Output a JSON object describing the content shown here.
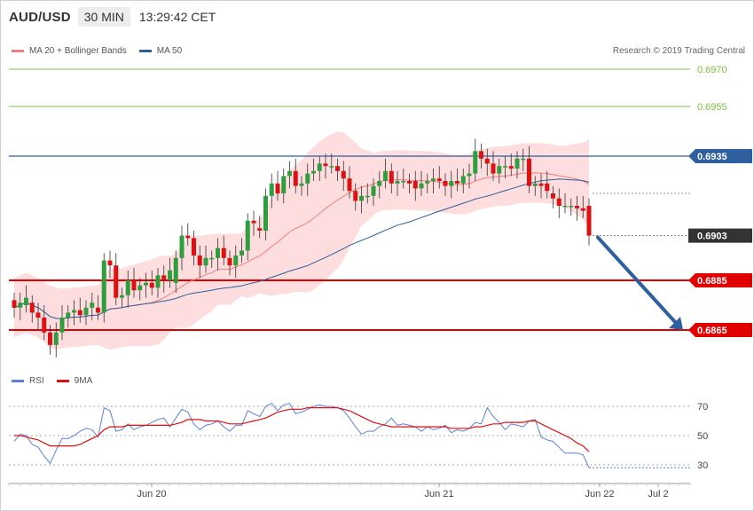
{
  "header": {
    "symbol": "AUD/USD",
    "timeframe": "30 MIN",
    "time": "13:29:42 CET"
  },
  "legend": {
    "ma20_label": "MA 20 + Bollinger Bands",
    "ma50_label": "MA 50",
    "ma20_color": "#f08080",
    "ma50_color": "#2e5f9e"
  },
  "credit": "Research © 2019 Trading Central",
  "rsi_legend": {
    "rsi_label": "RSI",
    "ma9_label": "9MA",
    "rsi_color": "#5b7fdc",
    "ma9_color": "#dd1111"
  },
  "colors": {
    "up": "#2e9e3e",
    "down": "#dd1111",
    "green_level": "#7cc244",
    "red_level": "#e00000",
    "blue_level": "#2e5f9e",
    "band_fill": "#fdd9d9",
    "arrow": "#2e5f9e",
    "current_price_bg": "#333333"
  },
  "chart_data": [
    {
      "type": "candlestick",
      "title": "AUD/USD 30 MIN",
      "ylim": [
        0.6848,
        0.6985
      ],
      "x_ticks": [
        "Jun 20",
        "Jun 21",
        "Jun 22",
        "Jul 2"
      ],
      "current_price": "0.6903",
      "arrow": {
        "direction": "down",
        "from": 0.6903,
        "to": 0.6865
      },
      "levels": [
        {
          "value": "0.6970",
          "kind": "resistance",
          "color": "green"
        },
        {
          "value": "0.6955",
          "kind": "resistance",
          "color": "green"
        },
        {
          "value": "0.6935",
          "kind": "pivot",
          "color": "blue"
        },
        {
          "value": "0.6885",
          "kind": "support",
          "color": "red"
        },
        {
          "value": "0.6865",
          "kind": "support",
          "color": "red"
        }
      ],
      "candles": [
        [
          0.6877,
          0.6874
        ],
        [
          0.6874,
          0.6876
        ],
        [
          0.6875,
          0.6878
        ],
        [
          0.6876,
          0.6872
        ],
        [
          0.6872,
          0.687
        ],
        [
          0.687,
          0.6864
        ],
        [
          0.6864,
          0.6859
        ],
        [
          0.6859,
          0.6864
        ],
        [
          0.6864,
          0.687
        ],
        [
          0.687,
          0.6872
        ],
        [
          0.6872,
          0.6873
        ],
        [
          0.6873,
          0.6871
        ],
        [
          0.6871,
          0.6874
        ],
        [
          0.6874,
          0.6876
        ],
        [
          0.6874,
          0.6872
        ],
        [
          0.6872,
          0.6893
        ],
        [
          0.6893,
          0.6891
        ],
        [
          0.6891,
          0.6878
        ],
        [
          0.6878,
          0.6879
        ],
        [
          0.6879,
          0.6885
        ],
        [
          0.6885,
          0.6881
        ],
        [
          0.6881,
          0.6883
        ],
        [
          0.6883,
          0.6884
        ],
        [
          0.6884,
          0.6882
        ],
        [
          0.6882,
          0.6887
        ],
        [
          0.6887,
          0.6885
        ],
        [
          0.6885,
          0.6889
        ],
        [
          0.6884,
          0.6894
        ],
        [
          0.6894,
          0.6903
        ],
        [
          0.6903,
          0.6902
        ],
        [
          0.6902,
          0.6895
        ],
        [
          0.6895,
          0.6891
        ],
        [
          0.6891,
          0.6894
        ],
        [
          0.6894,
          0.6894
        ],
        [
          0.6894,
          0.6898
        ],
        [
          0.6898,
          0.6894
        ],
        [
          0.6894,
          0.6891
        ],
        [
          0.6891,
          0.6895
        ],
        [
          0.6895,
          0.6897
        ],
        [
          0.6897,
          0.6909
        ],
        [
          0.6909,
          0.6908
        ],
        [
          0.6906,
          0.6905
        ],
        [
          0.6905,
          0.6919
        ],
        [
          0.6919,
          0.6924
        ],
        [
          0.6924,
          0.692
        ],
        [
          0.692,
          0.6927
        ],
        [
          0.6927,
          0.6929
        ],
        [
          0.6929,
          0.6923
        ],
        [
          0.6923,
          0.6924
        ],
        [
          0.6924,
          0.6928
        ],
        [
          0.6928,
          0.6929
        ],
        [
          0.6929,
          0.6932
        ],
        [
          0.6932,
          0.6931
        ],
        [
          0.6931,
          0.6931
        ],
        [
          0.6931,
          0.6929
        ],
        [
          0.6929,
          0.6926
        ],
        [
          0.6926,
          0.6921
        ],
        [
          0.6921,
          0.6917
        ],
        [
          0.6917,
          0.6919
        ],
        [
          0.6919,
          0.6919
        ],
        [
          0.6919,
          0.6923
        ],
        [
          0.6923,
          0.6925
        ],
        [
          0.6925,
          0.6929
        ],
        [
          0.6929,
          0.6924
        ],
        [
          0.6924,
          0.6925
        ],
        [
          0.6925,
          0.6925
        ],
        [
          0.6925,
          0.6924
        ],
        [
          0.6925,
          0.6922
        ],
        [
          0.6922,
          0.6924
        ],
        [
          0.6924,
          0.6925
        ],
        [
          0.6925,
          0.6926
        ],
        [
          0.6926,
          0.6925
        ],
        [
          0.6925,
          0.6923
        ],
        [
          0.6923,
          0.6925
        ],
        [
          0.6925,
          0.6924
        ],
        [
          0.6924,
          0.6927
        ],
        [
          0.6927,
          0.6928
        ],
        [
          0.6928,
          0.6937
        ],
        [
          0.6937,
          0.6934
        ],
        [
          0.6934,
          0.6932
        ],
        [
          0.6932,
          0.6928
        ],
        [
          0.6928,
          0.6931
        ],
        [
          0.6931,
          0.6931
        ],
        [
          0.6931,
          0.693
        ],
        [
          0.693,
          0.6934
        ],
        [
          0.6934,
          0.6934
        ],
        [
          0.6934,
          0.6923
        ],
        [
          0.6923,
          0.6924
        ],
        [
          0.6924,
          0.6923
        ],
        [
          0.6924,
          0.6921
        ],
        [
          0.692,
          0.6918
        ],
        [
          0.6918,
          0.6915
        ],
        [
          0.6915,
          0.6915
        ],
        [
          0.6915,
          0.6915
        ],
        [
          0.6915,
          0.6914
        ],
        [
          0.6914,
          0.6913
        ],
        [
          0.6915,
          0.6903
        ]
      ]
    },
    {
      "type": "line",
      "title": "RSI",
      "ylim": [
        20,
        85
      ],
      "y_ticks": [
        "70",
        "50",
        "30"
      ],
      "series": [
        {
          "name": "RSI",
          "values": [
            46,
            51,
            50,
            44,
            42,
            36,
            31,
            40,
            48,
            48,
            50,
            53,
            55,
            54,
            49,
            69,
            67,
            53,
            54,
            58,
            54,
            56,
            57,
            59,
            61,
            62,
            56,
            62,
            68,
            66,
            58,
            54,
            57,
            58,
            60,
            56,
            53,
            57,
            57,
            67,
            65,
            63,
            70,
            72,
            67,
            71,
            72,
            65,
            66,
            68,
            70,
            71,
            70,
            70,
            69,
            67,
            62,
            56,
            51,
            53,
            53,
            56,
            58,
            62,
            57,
            58,
            57,
            56,
            53,
            56,
            54,
            55,
            57,
            52,
            54,
            53,
            55,
            59,
            58,
            69,
            63,
            59,
            54,
            58,
            57,
            56,
            60,
            61,
            49,
            47,
            46,
            42,
            38,
            38,
            38,
            37,
            28
          ]
        },
        {
          "name": "9MA",
          "values": [
            50,
            50,
            49,
            48,
            47,
            45,
            43,
            43,
            43,
            43,
            43,
            44,
            46,
            48,
            50,
            54,
            56,
            56,
            56,
            57,
            57,
            57,
            57,
            57,
            57,
            57,
            57,
            58,
            59,
            61,
            61,
            61,
            60,
            60,
            60,
            59,
            58,
            58,
            58,
            59,
            60,
            61,
            62,
            64,
            66,
            67,
            68,
            68,
            68,
            69,
            69,
            69,
            69,
            69,
            69,
            68,
            67,
            65,
            63,
            61,
            59,
            58,
            57,
            56,
            56,
            56,
            56,
            56,
            56,
            56,
            56,
            56,
            56,
            55,
            55,
            55,
            55,
            56,
            56,
            57,
            58,
            58,
            59,
            59,
            59,
            59,
            60,
            60,
            58,
            56,
            54,
            52,
            50,
            48,
            45,
            43,
            39
          ]
        }
      ]
    }
  ]
}
